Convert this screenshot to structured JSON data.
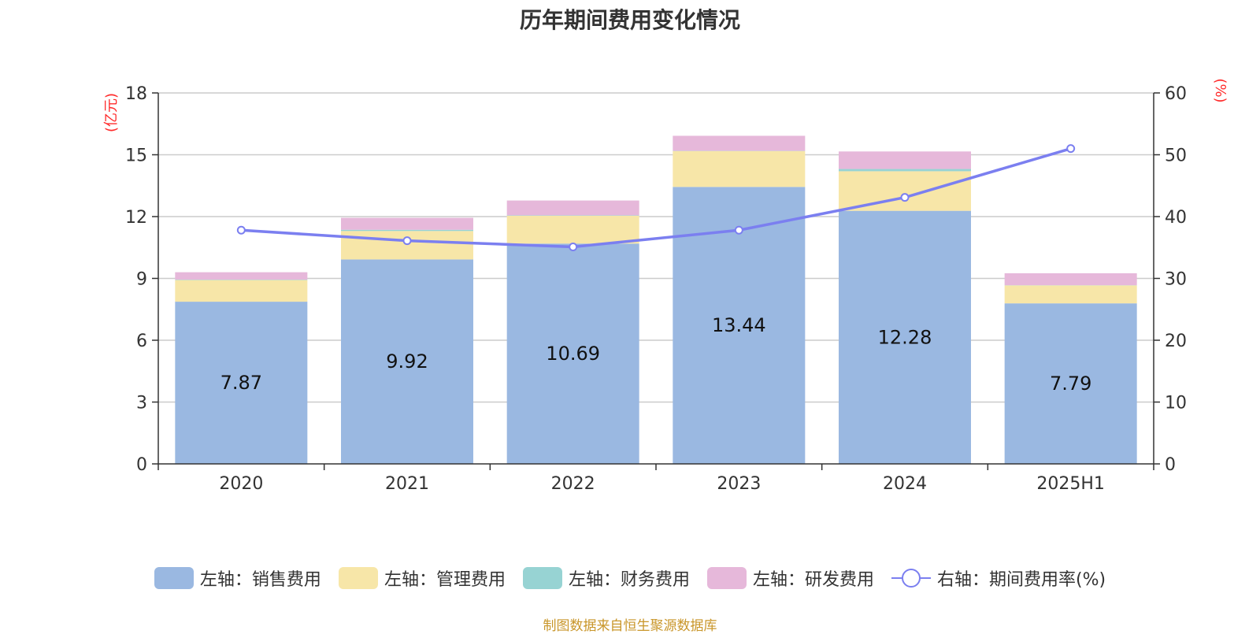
{
  "chart_data": {
    "type": "bar",
    "title": "历年期间费用变化情况",
    "categories": [
      "2020",
      "2021",
      "2022",
      "2023",
      "2024",
      "2025H1"
    ],
    "left_axis": {
      "unit_label": "(亿元)",
      "ylim": [
        0,
        18
      ],
      "ticks": [
        0,
        3,
        6,
        9,
        12,
        15,
        18
      ]
    },
    "right_axis": {
      "unit_label": "(%)",
      "ylim": [
        0,
        60
      ],
      "ticks": [
        0,
        10,
        20,
        30,
        40,
        50,
        60
      ]
    },
    "series": [
      {
        "name": "左轴：销售费用",
        "type": "bar",
        "stack": true,
        "axis": "left",
        "color": "#9ab8e1",
        "values": [
          7.87,
          9.92,
          10.69,
          13.44,
          12.28,
          7.79
        ],
        "show_labels": true
      },
      {
        "name": "左轴：管理费用",
        "type": "bar",
        "stack": true,
        "axis": "left",
        "color": "#f7e6a8",
        "values": [
          1.05,
          1.38,
          1.35,
          1.74,
          1.92,
          0.87
        ]
      },
      {
        "name": "左轴：财务费用",
        "type": "bar",
        "stack": true,
        "axis": "left",
        "color": "#97d3d3",
        "values": [
          0.02,
          0.06,
          0.02,
          0.01,
          0.11,
          0.01
        ]
      },
      {
        "name": "左轴：研发费用",
        "type": "bar",
        "stack": true,
        "axis": "left",
        "color": "#e6b8da",
        "values": [
          0.36,
          0.58,
          0.72,
          0.73,
          0.85,
          0.58
        ]
      },
      {
        "name": "右轴：期间费用率(%)",
        "type": "line",
        "axis": "right",
        "color": "#7b7ff0",
        "values": [
          37.8,
          36.1,
          35.1,
          37.8,
          43.1,
          51.0
        ]
      }
    ],
    "grid": true,
    "legend_position": "bottom"
  },
  "source_text": "制图数据来自恒生聚源数据库",
  "colors": {
    "unit_label": "#ff2b2b",
    "source": "#c9962a"
  }
}
